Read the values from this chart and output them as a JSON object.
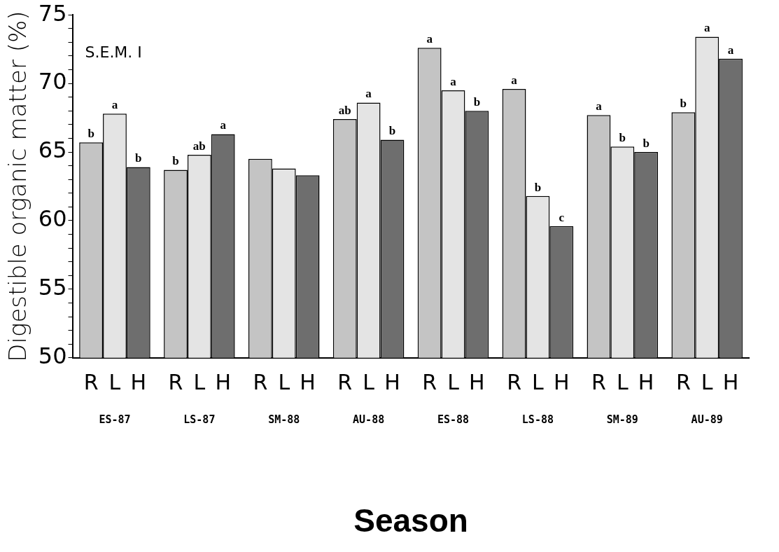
{
  "chart_data": {
    "type": "bar",
    "xlabel": "Season",
    "ylabel": "Digestible organic matter (%)",
    "categories": [
      "ES-87",
      "LS-87",
      "SM-88",
      "AU-88",
      "ES-88",
      "LS-88",
      "SM-89",
      "AU-89"
    ],
    "series": [
      {
        "name": "R",
        "color": "#c4c4c4",
        "values": [
          65.7,
          63.7,
          64.5,
          67.4,
          72.6,
          69.6,
          67.7,
          67.9
        ],
        "value_labels": [
          "b",
          "b",
          null,
          "ab",
          "a",
          "a",
          "a",
          "b"
        ]
      },
      {
        "name": "L",
        "color": "#e4e4e4",
        "values": [
          67.8,
          64.8,
          63.8,
          68.6,
          69.5,
          61.8,
          65.4,
          73.4
        ],
        "value_labels": [
          "a",
          "ab",
          null,
          "a",
          "a",
          "b",
          "b",
          "a"
        ]
      },
      {
        "name": "H",
        "color": "#6e6e6e",
        "values": [
          63.9,
          66.3,
          63.3,
          65.9,
          68.0,
          59.6,
          65.0,
          71.8
        ],
        "value_labels": [
          "b",
          "a",
          null,
          "b",
          "b",
          "c",
          "b",
          "a"
        ]
      }
    ],
    "ylim": [
      50,
      75
    ],
    "yticks": [
      50,
      {
        "value": 51,
        "label": null
      },
      {
        "value": 52,
        "label": null
      },
      {
        "value": 53,
        "label": null
      },
      {
        "value": 54,
        "label": null
      },
      55,
      {
        "value": 56,
        "label": null
      },
      {
        "value": 57,
        "label": null
      },
      {
        "value": 58,
        "label": null
      },
      {
        "value": 59,
        "label": null
      },
      60,
      {
        "value": 61,
        "label": null
      },
      {
        "value": 62,
        "label": null
      },
      {
        "value": 63,
        "label": null
      },
      {
        "value": 64,
        "label": null
      },
      65,
      {
        "value": 66,
        "label": null
      },
      {
        "value": 67,
        "label": null
      },
      {
        "value": 68,
        "label": null
      },
      {
        "value": 69,
        "label": null
      },
      70,
      {
        "value": 71,
        "label": null
      },
      {
        "value": 72,
        "label": null
      },
      {
        "value": 73,
        "label": null
      },
      {
        "value": 74,
        "label": null
      },
      75
    ],
    "grid": false,
    "legend": false,
    "annotations": [
      "S.E.M. I"
    ]
  }
}
